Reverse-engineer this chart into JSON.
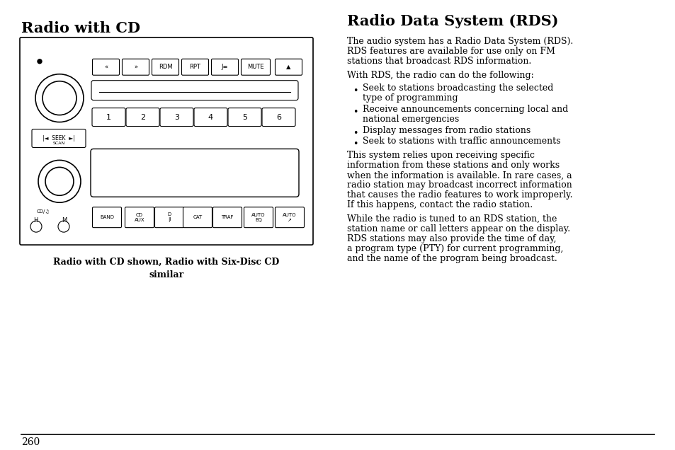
{
  "bg_color": "#ffffff",
  "left_title": "Radio with CD",
  "right_title": "Radio Data System (RDS)",
  "caption": "Radio with CD shown, Radio with Six-Disc CD\nsimilar",
  "page_number": "260",
  "rds_intro": "The audio system has a Radio Data System (RDS).\nRDS features are available for use only on FM\nstations that broadcast RDS information.",
  "rds_with": "With RDS, the radio can do the following:",
  "bullets": [
    "Seek to stations broadcasting the selected\ntype of programming",
    "Receive announcements concerning local and\nnational emergencies",
    "Display messages from radio stations",
    "Seek to stations with traffic announcements"
  ],
  "para1": "This system relies upon receiving specific\ninformation from these stations and only works\nwhen the information is available. In rare cases, a\nradio station may broadcast incorrect information\nthat causes the radio features to work improperly.\nIf this happens, contact the radio station.",
  "para2": "While the radio is tuned to an RDS station, the\nstation name or call letters appear on the display.\nRDS stations may also provide the time of day,\na program type (PTY) for current programming,\nand the name of the program being broadcast.",
  "font_family": "DejaVu Serif",
  "mono_font": "DejaVu Sans Mono",
  "text_color": "#000000",
  "line_color": "#000000"
}
